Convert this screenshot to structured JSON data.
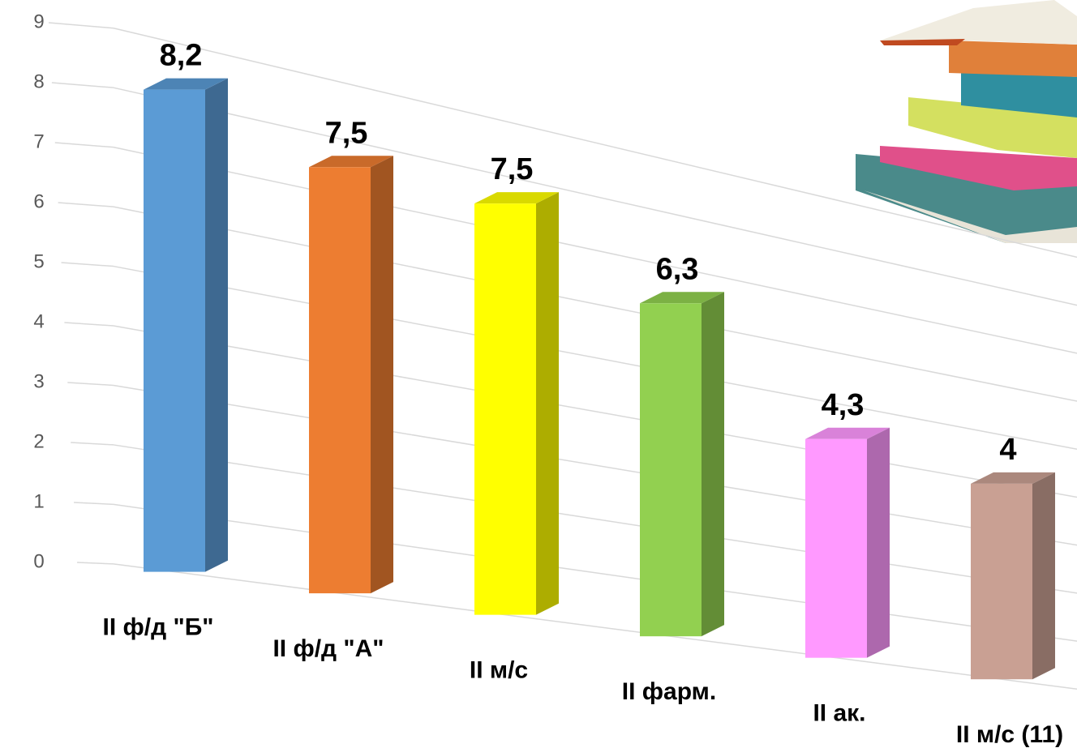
{
  "chart_data": {
    "type": "bar3d",
    "categories": [
      "II ф/д \"Б\"",
      "II ф/д \"А\"",
      "II м/с",
      "II фарм.",
      "II ак.",
      "II м/с (11)"
    ],
    "values": [
      8.2,
      7.5,
      7.5,
      6.3,
      4.3,
      4
    ],
    "value_labels": [
      "8,2",
      "7,5",
      "7,5",
      "6,3",
      "4,3",
      "4"
    ],
    "colors": [
      "#5b9bd5",
      "#ed7d31",
      "#ffff00",
      "#92d050",
      "#ff99ff",
      "#c9a093"
    ],
    "ylim": [
      0,
      9
    ],
    "yticks": [
      0,
      1,
      2,
      3,
      4,
      5,
      6,
      7,
      8,
      9
    ],
    "grid": true
  }
}
